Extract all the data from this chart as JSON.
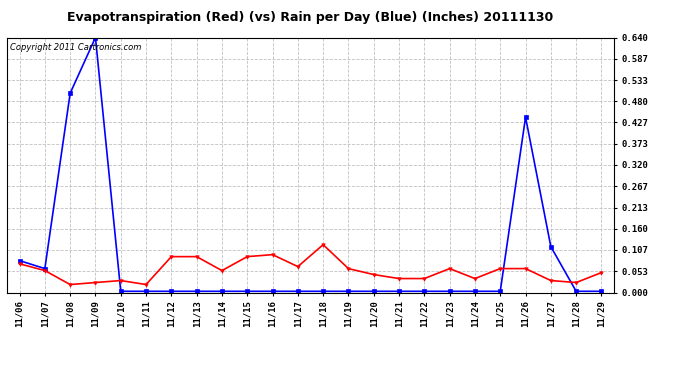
{
  "title": "Evapotranspiration (Red) (vs) Rain per Day (Blue) (Inches) 20111130",
  "copyright": "Copyright 2011 Cartronics.com",
  "x_labels": [
    "11/06",
    "11/07",
    "11/08",
    "11/09",
    "11/10",
    "11/11",
    "11/12",
    "11/13",
    "11/14",
    "11/15",
    "11/16",
    "11/17",
    "11/18",
    "11/19",
    "11/20",
    "11/21",
    "11/22",
    "11/23",
    "11/24",
    "11/25",
    "11/26",
    "11/27",
    "11/28",
    "11/29"
  ],
  "blue_data": [
    0.08,
    0.06,
    0.5,
    0.64,
    0.003,
    0.003,
    0.003,
    0.003,
    0.003,
    0.003,
    0.003,
    0.003,
    0.003,
    0.003,
    0.003,
    0.003,
    0.003,
    0.003,
    0.003,
    0.003,
    0.44,
    0.115,
    0.003,
    0.003
  ],
  "red_data": [
    0.072,
    0.055,
    0.02,
    0.025,
    0.03,
    0.02,
    0.09,
    0.09,
    0.055,
    0.09,
    0.095,
    0.065,
    0.12,
    0.06,
    0.045,
    0.035,
    0.035,
    0.06,
    0.035,
    0.06,
    0.06,
    0.03,
    0.025,
    0.05
  ],
  "ylim": [
    0.0,
    0.64
  ],
  "yticks": [
    0.0,
    0.053,
    0.107,
    0.16,
    0.213,
    0.267,
    0.32,
    0.373,
    0.427,
    0.48,
    0.533,
    0.587,
    0.64
  ],
  "background_color": "#ffffff",
  "plot_bg_color": "#ffffff",
  "grid_color": "#bbbbbb",
  "blue_color": "#0000ff",
  "red_color": "#ff0000",
  "border_color": "#000000",
  "title_fontsize": 9,
  "copyright_fontsize": 6,
  "tick_fontsize": 6.5
}
